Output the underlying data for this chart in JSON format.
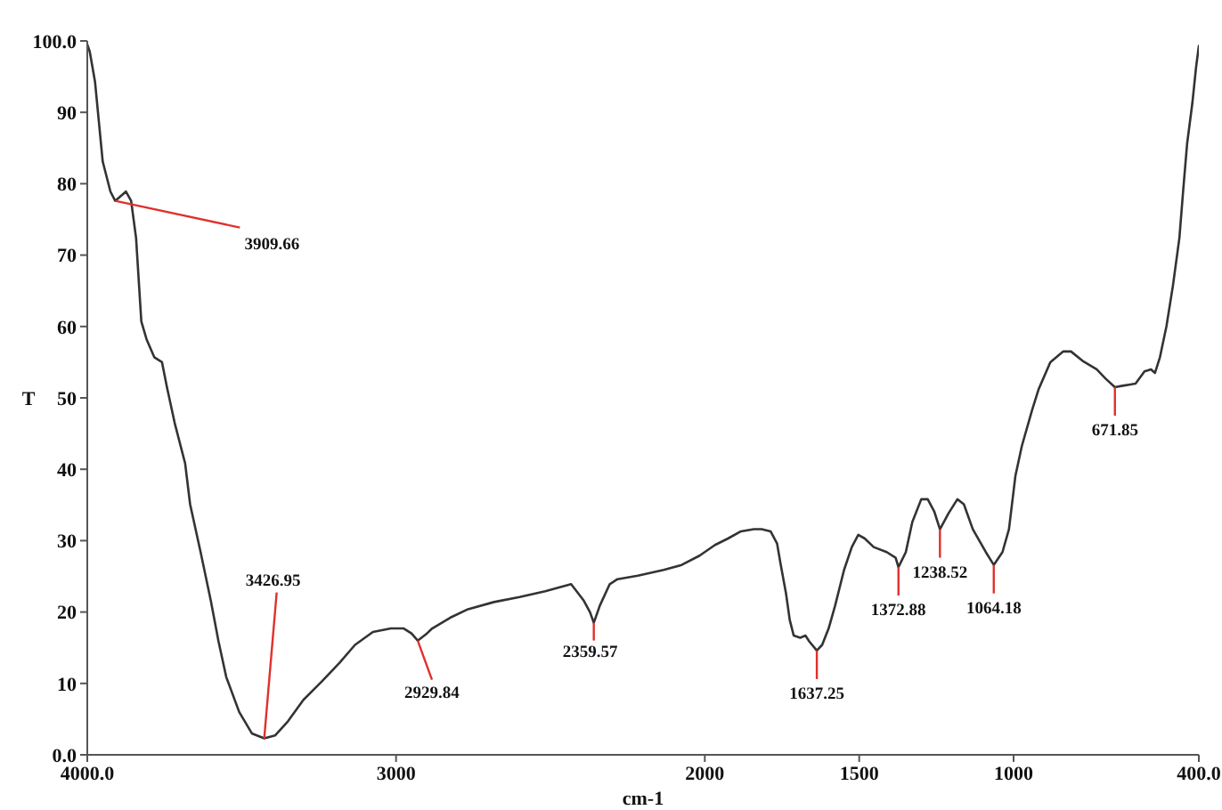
{
  "chart_data": {
    "type": "line",
    "xlabel": "cm-1",
    "ylabel": "T",
    "color": "#333333",
    "marker": "none",
    "line_style": "solid",
    "x": [
      4000,
      3992,
      3975,
      3950,
      3925,
      3909.66,
      3875,
      3858,
      3842,
      3825,
      3808,
      3783,
      3758,
      3742,
      3717,
      3683,
      3667,
      3633,
      3600,
      3575,
      3550,
      3508,
      3467,
      3426.95,
      3392,
      3350,
      3300,
      3242,
      3183,
      3133,
      3075,
      3017,
      2975,
      2950,
      2929.84,
      2900,
      2883,
      2825,
      2767,
      2683,
      2600,
      2517,
      2433,
      2392,
      2372,
      2359.57,
      2340,
      2308,
      2283,
      2217,
      2133,
      2075,
      2017,
      1967,
      1925,
      1883,
      1841,
      1816,
      1787,
      1766,
      1754,
      1737,
      1725,
      1712,
      1691,
      1674,
      1662,
      1637.25,
      1620,
      1599,
      1578,
      1549,
      1524,
      1503,
      1482,
      1453,
      1411,
      1382,
      1372.88,
      1349,
      1328,
      1299,
      1278,
      1257,
      1238.52,
      1211,
      1182,
      1161,
      1132,
      1090,
      1064.18,
      1036,
      1015,
      994,
      973,
      940,
      919,
      881,
      839,
      814,
      777,
      731,
      702,
      671.85,
      647,
      605,
      576,
      555,
      542,
      526,
      505,
      484,
      463,
      451,
      438,
      421,
      409,
      400
    ],
    "values": [
      99.5,
      98.5,
      94.3,
      83.1,
      78.9,
      77.6,
      78.9,
      77.6,
      72.4,
      60.7,
      58.2,
      55.7,
      55.0,
      51.5,
      46.5,
      40.8,
      35.1,
      28.4,
      21.6,
      15.9,
      10.9,
      6.0,
      3.0,
      2.3,
      2.7,
      4.7,
      7.7,
      10.2,
      12.9,
      15.4,
      17.2,
      17.7,
      17.7,
      17.0,
      16.0,
      17.0,
      17.7,
      19.2,
      20.4,
      21.4,
      22.1,
      22.9,
      23.9,
      21.6,
      20.0,
      18.5,
      20.9,
      23.9,
      24.6,
      25.1,
      25.9,
      26.6,
      27.9,
      29.4,
      30.3,
      31.3,
      31.6,
      31.6,
      31.3,
      29.6,
      26.6,
      22.6,
      18.9,
      16.7,
      16.4,
      16.7,
      15.9,
      14.6,
      15.4,
      17.7,
      20.9,
      25.9,
      29.1,
      30.8,
      30.3,
      29.1,
      28.4,
      27.6,
      26.3,
      28.4,
      32.6,
      35.8,
      35.8,
      34.1,
      31.6,
      33.8,
      35.8,
      35.1,
      31.6,
      28.4,
      26.6,
      28.4,
      31.6,
      39.1,
      43.3,
      48.3,
      51.2,
      55.0,
      56.5,
      56.5,
      55.2,
      54.0,
      52.7,
      51.5,
      51.7,
      52.0,
      53.7,
      54.0,
      53.5,
      55.7,
      60.0,
      65.7,
      72.4,
      78.9,
      85.6,
      91.3,
      96.3,
      99.3
    ],
    "xlim": [
      4000,
      400
    ],
    "xticks": [
      {
        "value": 4000,
        "label": "4000.0"
      },
      3000,
      2000,
      1500,
      1000,
      {
        "value": 400,
        "label": "400.0"
      }
    ],
    "ylim": [
      0,
      100
    ],
    "yticks": [
      {
        "value": 0,
        "label": "0.0"
      },
      10,
      20,
      30,
      40,
      50,
      60,
      70,
      80,
      90,
      {
        "value": 100,
        "label": "100.0"
      }
    ],
    "annotations": [
      {
        "text": "3909.66",
        "x": 3909.66,
        "y": 77.6
      },
      {
        "text": "3426.95",
        "x": 3426.95,
        "y": 2.3
      },
      {
        "text": "2929.84",
        "x": 2929.84,
        "y": 16.0
      },
      {
        "text": "2359.57",
        "x": 2359.57,
        "y": 18.5
      },
      {
        "text": "1637.25",
        "x": 1637.25,
        "y": 14.6
      },
      {
        "text": "1372.88",
        "x": 1372.88,
        "y": 26.3
      },
      {
        "text": "1238.52",
        "x": 1238.52,
        "y": 31.6
      },
      {
        "text": "1064.18",
        "x": 1064.18,
        "y": 26.6
      },
      {
        "text": "671.85",
        "x": 671.85,
        "y": 51.5
      }
    ]
  }
}
